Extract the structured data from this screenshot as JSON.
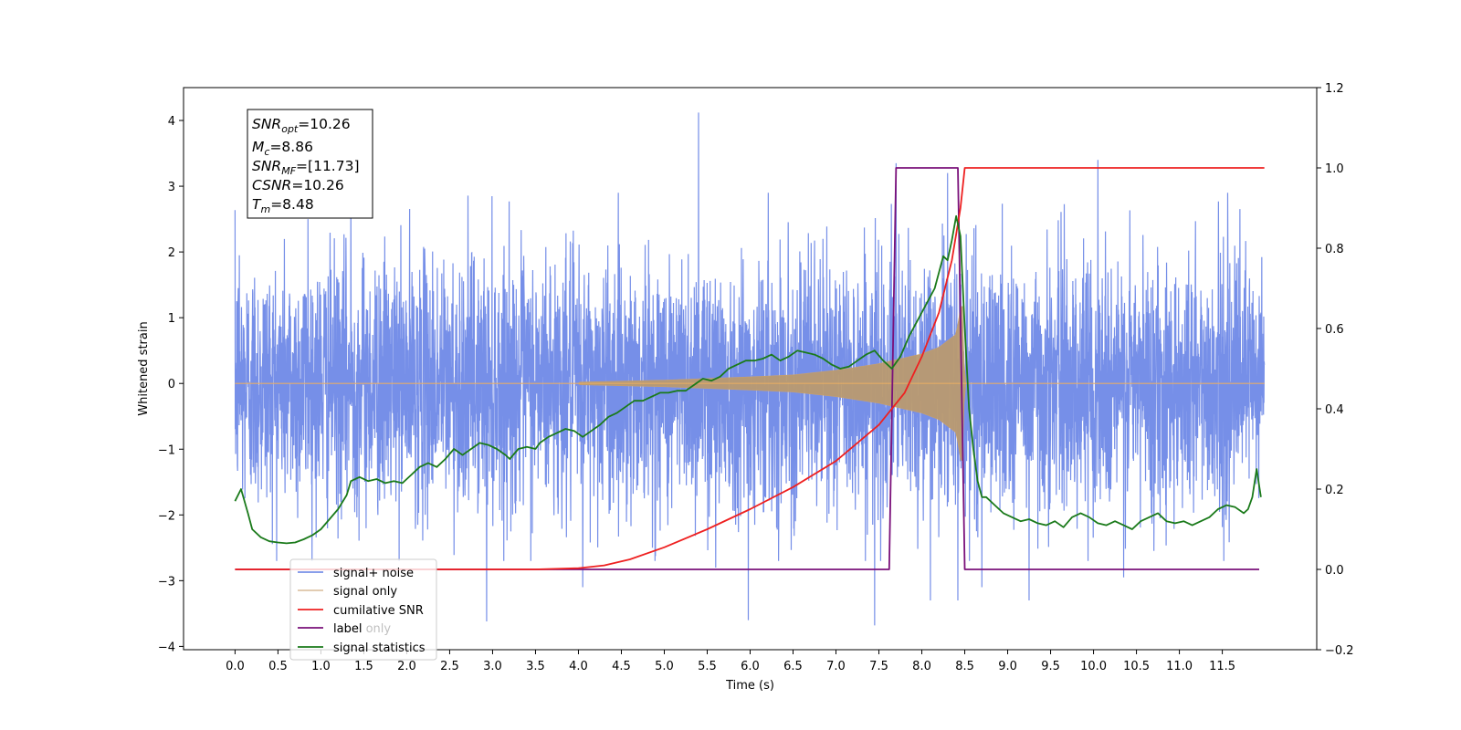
{
  "chart_data": {
    "type": "line",
    "xlabel": "Time (s)",
    "ylabel": "Whitened strain",
    "xlim": [
      -0.6,
      12.6
    ],
    "ylim": [
      -4.05,
      4.5
    ],
    "y2lim": [
      -0.2,
      1.2
    ],
    "x_ticks": [
      "0.0",
      "0.5",
      "1.0",
      "1.5",
      "2.0",
      "2.5",
      "3.0",
      "3.5",
      "4.0",
      "4.5",
      "5.0",
      "5.5",
      "6.0",
      "6.5",
      "7.0",
      "7.5",
      "8.0",
      "8.5",
      "9.0",
      "9.5",
      "10.0",
      "10.5",
      "11.0",
      "11.5"
    ],
    "y_ticks": [
      "−4",
      "−3",
      "−2",
      "−1",
      "0",
      "1",
      "2",
      "3",
      "4"
    ],
    "y2_ticks": [
      "−0.2",
      "0.0",
      "0.2",
      "0.4",
      "0.6",
      "0.8",
      "1.0",
      "1.2"
    ],
    "grid": false,
    "legend_position": "lower-left",
    "annotation": {
      "snr_opt": "=10.26",
      "mc": "=8.86",
      "snr_mf": "=[11.73]",
      "csnr": "=10.26",
      "tm": "=8.48"
    },
    "series": [
      {
        "name": "signal+ noise",
        "color": "#6a86e6",
        "x_range": [
          0.0,
          11.99
        ],
        "noise_envelope": [
          -2.8,
          3.2
        ],
        "spikes": [
          [
            0.05,
            1.95
          ],
          [
            0.85,
            2.5
          ],
          [
            1.35,
            3.0
          ],
          [
            2.93,
            -3.62
          ],
          [
            4.05,
            -3.1
          ],
          [
            5.4,
            4.12
          ],
          [
            5.6,
            -2.8
          ],
          [
            5.98,
            -3.6
          ],
          [
            7.45,
            -3.68
          ],
          [
            7.7,
            3.35
          ],
          [
            8.1,
            -3.3
          ],
          [
            8.3,
            3.2
          ],
          [
            8.42,
            -3.3
          ],
          [
            8.7,
            -3.1
          ],
          [
            9.25,
            -3.3
          ],
          [
            10.05,
            3.4
          ],
          [
            10.35,
            -2.95
          ]
        ]
      },
      {
        "name": "signal only",
        "color": "#c8a06e",
        "x_range": [
          0.0,
          11.99
        ],
        "envelope": [
          [
            4.0,
            0.02
          ],
          [
            5.0,
            0.05
          ],
          [
            6.0,
            0.1
          ],
          [
            6.5,
            0.13
          ],
          [
            7.0,
            0.2
          ],
          [
            7.5,
            0.3
          ],
          [
            8.0,
            0.45
          ],
          [
            8.2,
            0.55
          ],
          [
            8.4,
            0.75
          ],
          [
            8.47,
            1.3
          ],
          [
            8.5,
            0.0
          ]
        ]
      },
      {
        "name": "cumilative SNR",
        "color": "#ee2020",
        "axis": "right",
        "x": [
          0.0,
          3.5,
          4.0,
          4.3,
          4.6,
          5.0,
          5.5,
          6.0,
          6.5,
          7.0,
          7.5,
          7.8,
          8.0,
          8.2,
          8.35,
          8.45,
          8.5,
          11.99
        ],
        "y": [
          0.0,
          0.0,
          0.003,
          0.01,
          0.025,
          0.055,
          0.1,
          0.15,
          0.205,
          0.27,
          0.36,
          0.44,
          0.53,
          0.64,
          0.77,
          0.9,
          1.0,
          1.0
        ]
      },
      {
        "name": "label",
        "color": "#7a107a",
        "axis": "right",
        "x": [
          0.0,
          7.62,
          7.7,
          8.42,
          8.5,
          11.93
        ],
        "y": [
          0.0,
          0.0,
          1.0,
          1.0,
          0.0,
          0.0
        ]
      },
      {
        "name": "signal statistics",
        "color": "#1a7a1a",
        "axis": "right",
        "x": [
          0.0,
          0.07,
          0.15,
          0.2,
          0.3,
          0.4,
          0.5,
          0.6,
          0.7,
          0.8,
          0.9,
          1.0,
          1.1,
          1.2,
          1.3,
          1.35,
          1.45,
          1.55,
          1.65,
          1.75,
          1.85,
          1.95,
          2.05,
          2.15,
          2.25,
          2.35,
          2.45,
          2.55,
          2.65,
          2.75,
          2.85,
          2.95,
          3.05,
          3.15,
          3.2,
          3.3,
          3.4,
          3.5,
          3.55,
          3.65,
          3.75,
          3.85,
          3.95,
          4.05,
          4.15,
          4.25,
          4.35,
          4.45,
          4.55,
          4.65,
          4.75,
          4.85,
          4.95,
          5.05,
          5.15,
          5.25,
          5.35,
          5.45,
          5.55,
          5.65,
          5.75,
          5.85,
          5.95,
          6.05,
          6.15,
          6.25,
          6.35,
          6.45,
          6.55,
          6.65,
          6.75,
          6.85,
          6.95,
          7.05,
          7.15,
          7.25,
          7.35,
          7.45,
          7.55,
          7.65,
          7.75,
          7.85,
          7.95,
          8.05,
          8.15,
          8.25,
          8.3,
          8.35,
          8.4,
          8.45,
          8.5,
          8.55,
          8.6,
          8.65,
          8.7,
          8.75,
          8.85,
          8.95,
          9.05,
          9.15,
          9.25,
          9.35,
          9.45,
          9.55,
          9.65,
          9.75,
          9.85,
          9.95,
          10.05,
          10.15,
          10.25,
          10.35,
          10.45,
          10.55,
          10.65,
          10.75,
          10.85,
          10.95,
          11.05,
          11.15,
          11.25,
          11.35,
          11.45,
          11.55,
          11.65,
          11.75,
          11.8,
          11.85,
          11.9,
          11.95
        ],
        "y": [
          0.17,
          0.2,
          0.14,
          0.1,
          0.08,
          0.07,
          0.067,
          0.065,
          0.067,
          0.075,
          0.085,
          0.1,
          0.125,
          0.15,
          0.185,
          0.22,
          0.23,
          0.22,
          0.225,
          0.215,
          0.22,
          0.215,
          0.235,
          0.255,
          0.265,
          0.255,
          0.275,
          0.3,
          0.285,
          0.3,
          0.315,
          0.31,
          0.3,
          0.285,
          0.275,
          0.3,
          0.305,
          0.3,
          0.315,
          0.33,
          0.34,
          0.35,
          0.345,
          0.33,
          0.345,
          0.36,
          0.38,
          0.39,
          0.405,
          0.42,
          0.42,
          0.43,
          0.44,
          0.44,
          0.445,
          0.445,
          0.46,
          0.475,
          0.47,
          0.48,
          0.5,
          0.51,
          0.52,
          0.52,
          0.525,
          0.535,
          0.52,
          0.53,
          0.545,
          0.54,
          0.535,
          0.525,
          0.51,
          0.5,
          0.505,
          0.52,
          0.535,
          0.545,
          0.52,
          0.5,
          0.53,
          0.58,
          0.62,
          0.66,
          0.7,
          0.78,
          0.77,
          0.82,
          0.88,
          0.83,
          0.6,
          0.4,
          0.3,
          0.22,
          0.18,
          0.18,
          0.16,
          0.14,
          0.13,
          0.12,
          0.125,
          0.115,
          0.11,
          0.12,
          0.105,
          0.13,
          0.14,
          0.13,
          0.115,
          0.11,
          0.12,
          0.11,
          0.1,
          0.12,
          0.13,
          0.14,
          0.12,
          0.115,
          0.12,
          0.11,
          0.12,
          0.13,
          0.15,
          0.16,
          0.155,
          0.14,
          0.15,
          0.18,
          0.25,
          0.18
        ]
      },
      {
        "name": "label only",
        "color": "#7a107a",
        "axis": "right",
        "legend_only": true
      }
    ]
  }
}
